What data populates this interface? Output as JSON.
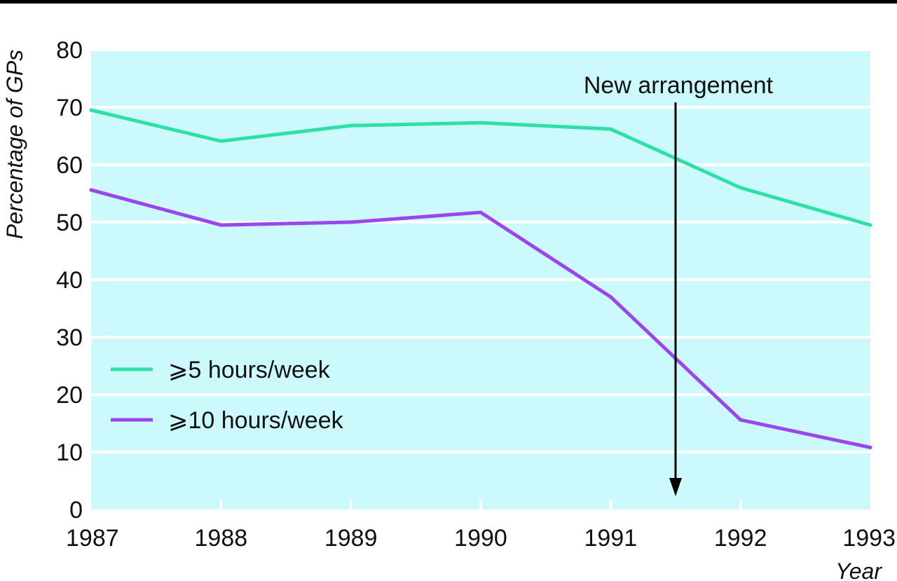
{
  "chart_data": {
    "type": "line",
    "x": [
      1987,
      1988,
      1989,
      1990,
      1991,
      1992,
      1993
    ],
    "xlabel": "Year",
    "ylabel": "Percentage of GPs",
    "ylim": [
      0,
      80
    ],
    "yticks": [
      0,
      10,
      20,
      30,
      40,
      50,
      60,
      70,
      80
    ],
    "grid": "horizontal",
    "legend": "lower-left",
    "background_color": "#ccfafc",
    "series": [
      {
        "name": "⩾5 hours/week",
        "color": "#2ee0a6",
        "values": [
          69.5,
          64.1,
          66.8,
          67.3,
          66.2,
          56.0,
          49.5
        ]
      },
      {
        "name": "⩾10 hours/week",
        "color": "#9b45ee",
        "values": [
          55.6,
          49.5,
          50.0,
          51.7,
          37.0,
          15.6,
          10.8
        ]
      }
    ],
    "annotation": {
      "text": "New arrangement",
      "x": 1991.5
    }
  }
}
